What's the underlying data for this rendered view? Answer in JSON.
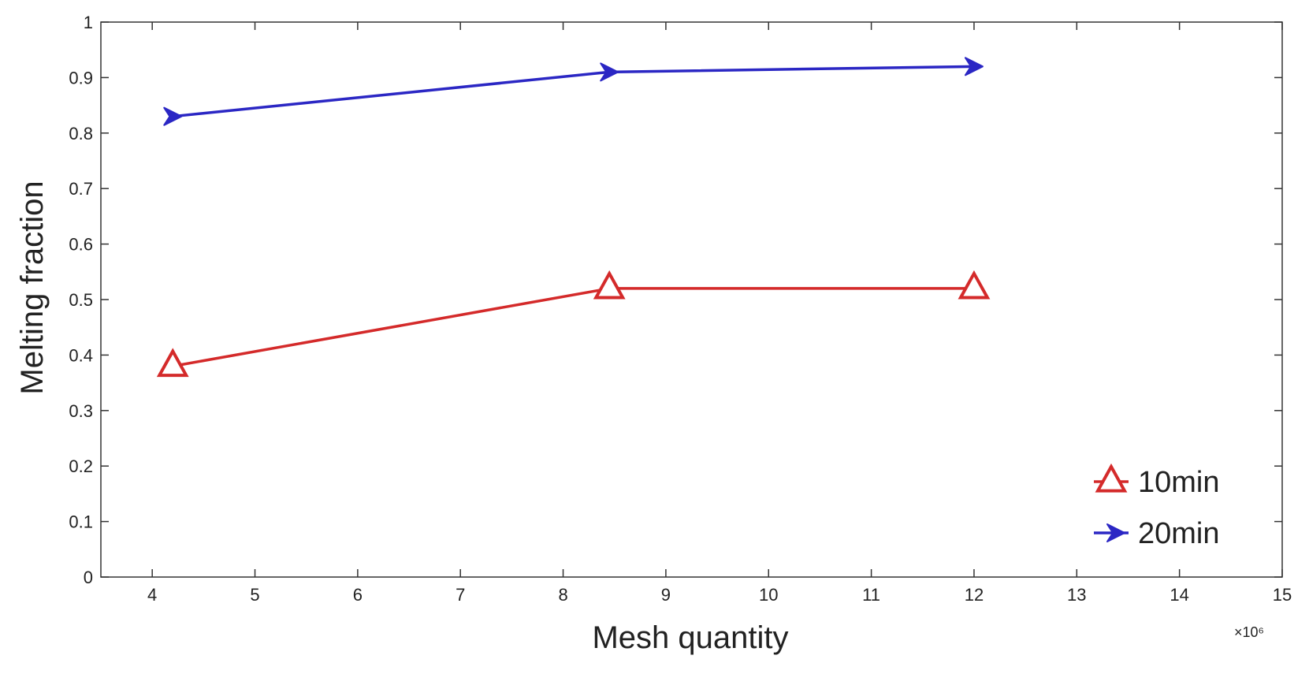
{
  "chart_data": {
    "type": "line",
    "title": "",
    "xlabel": "Mesh quantity",
    "ylabel": "Melting fraction",
    "x_exponent_label": "×10⁶",
    "xlim": [
      3.5,
      15
    ],
    "ylim": [
      0,
      1
    ],
    "x_ticks": [
      4,
      5,
      6,
      7,
      8,
      9,
      10,
      11,
      12,
      13,
      14,
      15
    ],
    "y_ticks": [
      0,
      0.1,
      0.2,
      0.3,
      0.4,
      0.5,
      0.6,
      0.7,
      0.8,
      0.9,
      1
    ],
    "x_tick_labels": [
      "4",
      "5",
      "6",
      "7",
      "8",
      "9",
      "10",
      "11",
      "12",
      "13",
      "14",
      "15"
    ],
    "y_tick_labels": [
      "0",
      "0.1",
      "0.2",
      "0.3",
      "0.4",
      "0.5",
      "0.6",
      "0.7",
      "0.8",
      "0.9",
      "1"
    ],
    "grid": false,
    "legend_position": "bottom-right",
    "series": [
      {
        "name": "10min",
        "x": [
          4.2,
          8.45,
          12.0
        ],
        "y": [
          0.38,
          0.52,
          0.52
        ],
        "color": "#d42a2a",
        "marker": "triangle"
      },
      {
        "name": "20min",
        "x": [
          4.2,
          8.45,
          12.0
        ],
        "y": [
          0.83,
          0.91,
          0.92
        ],
        "color": "#2b27c4",
        "marker": "arrow"
      }
    ]
  }
}
